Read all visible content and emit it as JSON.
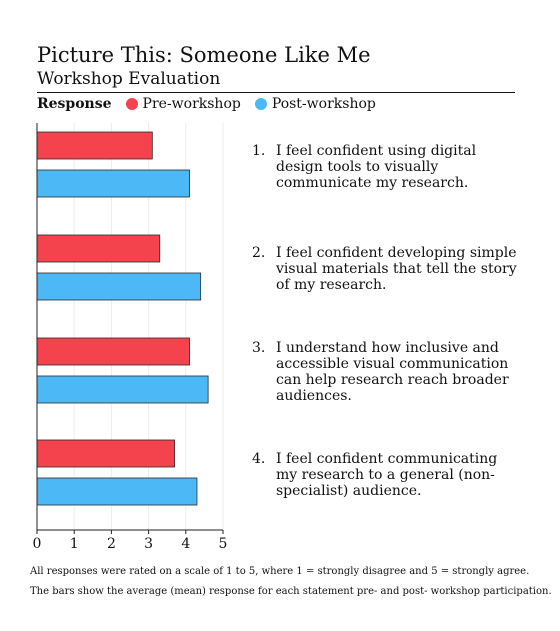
{
  "title": "Picture This: Someone Like Me",
  "subtitle": "Workshop Evaluation",
  "legend": {
    "title": "Response",
    "items": [
      {
        "label": "Pre-workshop",
        "color": "#f5434e"
      },
      {
        "label": "Post-workshop",
        "color": "#4cb8f5"
      }
    ]
  },
  "statements": [
    {
      "num": "1.",
      "text": "I feel confident using digital design tools to visually communicate my research."
    },
    {
      "num": "2.",
      "text": "I feel confident developing simple visual materials that tell the story of my research."
    },
    {
      "num": "3.",
      "text": "I understand how inclusive and accessible visual communication can help research reach broader audiences."
    },
    {
      "num": "4.",
      "text": "I feel confident communicating my research to a general (non-specialist) audience."
    }
  ],
  "chart_data": {
    "type": "bar",
    "orientation": "horizontal",
    "categories": [
      "1.",
      "2.",
      "3.",
      "4."
    ],
    "series": [
      {
        "name": "Pre-workshop",
        "color": "#f5434e",
        "values": [
          3.1,
          3.3,
          4.1,
          3.7
        ]
      },
      {
        "name": "Post-workshop",
        "color": "#4cb8f5",
        "values": [
          4.1,
          4.4,
          4.6,
          4.3
        ]
      }
    ],
    "xlim": [
      0,
      5
    ],
    "ticks": [
      "0",
      "1",
      "2",
      "3",
      "4",
      "5"
    ],
    "grid": true,
    "legend_position": "top"
  },
  "notes": [
    "All responses were rated on a scale of 1 to 5, where 1 = strongly disagree and 5 = strongly agree.",
    "The bars show the average (mean) response for each statement pre- and post- workshop participation."
  ]
}
